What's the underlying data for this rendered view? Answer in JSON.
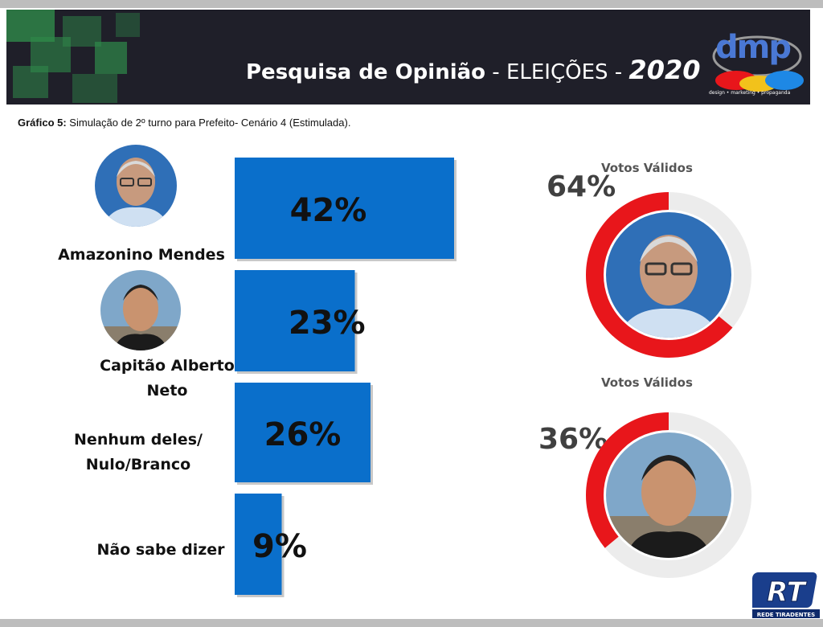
{
  "header": {
    "title_main": "Pesquisa de Opinião",
    "title_sep": " - ELEIÇÕES - ",
    "title_year": "2020",
    "logo_text": "dmp",
    "logo_sub": "design • marketing • propaganda"
  },
  "chart_title": {
    "prefix": "Gráfico 5:",
    "text": " Simulação de 2º turno para Prefeito- Cenário 4 (Estimulada)."
  },
  "labels": {
    "amazonino": "Amazonino Mendes",
    "alberto_1": "Capitão Alberto",
    "alberto_2": "Neto",
    "nenhum_1": "Nenhum deles/",
    "nenhum_2": "Nulo/Branco",
    "nao_sabe": "Não sabe dizer"
  },
  "chart_data": [
    {
      "type": "bar",
      "orientation": "horizontal",
      "categories": [
        "Amazonino Mendes",
        "Capitão Alberto Neto",
        "Nenhum deles/ Nulo/Branco",
        "Não sabe dizer"
      ],
      "values": [
        42,
        23,
        26,
        9
      ],
      "value_labels": [
        "42%",
        "23%",
        "26%",
        "9%"
      ],
      "unit": "%",
      "color": "#0a6fcb"
    },
    {
      "type": "pie",
      "variant": "donut",
      "title": "Votos Válidos",
      "values": [
        64,
        36
      ],
      "value_label": "64%",
      "colors": [
        "#e8161b",
        "#ececec"
      ]
    },
    {
      "type": "pie",
      "variant": "donut",
      "title": "Votos Válidos",
      "values": [
        36,
        64
      ],
      "value_label": "36%",
      "colors": [
        "#e8161b",
        "#ececec"
      ]
    }
  ],
  "footer": {
    "logo_text": "RT",
    "logo_sub": "REDE TIRADENTES"
  },
  "colors": {
    "bar": "#0a6fcb",
    "donut_active": "#e8161b",
    "donut_track": "#ececec",
    "header_bg": "#1f1f29"
  }
}
